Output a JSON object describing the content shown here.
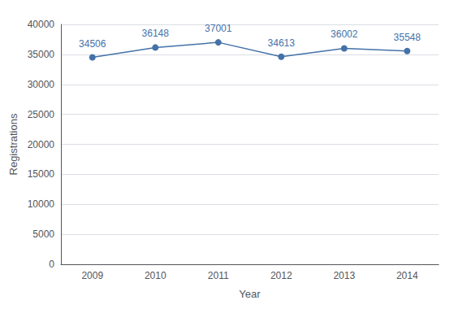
{
  "chart_data": {
    "type": "line",
    "categories": [
      "2009",
      "2010",
      "2011",
      "2012",
      "2013",
      "2014"
    ],
    "values": [
      34506,
      36148,
      37001,
      34613,
      36002,
      35548
    ],
    "color": "#4472a8",
    "marker": "circle",
    "xlabel": "Year",
    "ylabel": "Registrations",
    "ylim": [
      0,
      40000
    ],
    "yticks": [
      0,
      5000,
      10000,
      15000,
      20000,
      25000,
      30000,
      35000,
      40000
    ],
    "grid": true,
    "data_labels": true
  }
}
